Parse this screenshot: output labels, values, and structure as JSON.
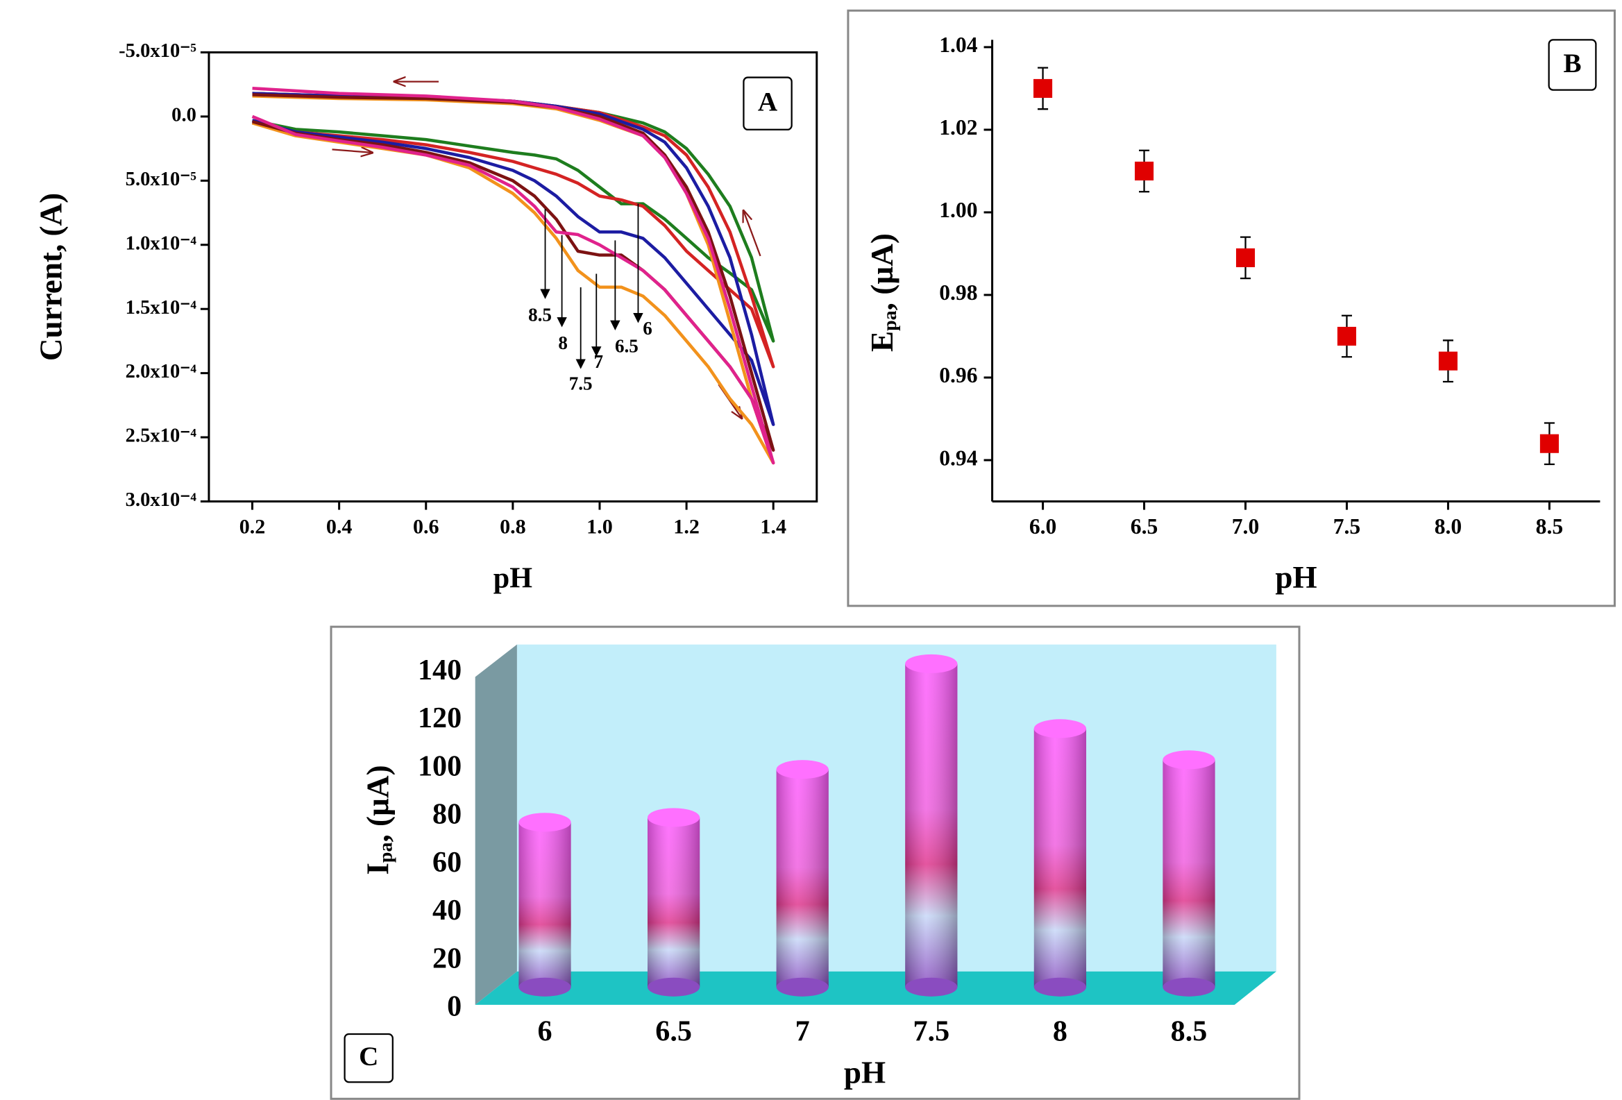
{
  "chart_data": [
    {
      "type": "line",
      "panel": "A",
      "xlabel": "pH",
      "ylabel": "Current, (A)",
      "xlim": [
        0.1,
        1.5
      ],
      "ylim": [
        -5e-05,
        0.0003
      ],
      "y_inverted": true,
      "xticks": [
        0.2,
        0.4,
        0.6,
        0.8,
        {
          "value": 1,
          "label": "1.0"
        },
        1.2,
        1.4
      ],
      "yticks": [
        {
          "value": -5e-05,
          "label": "-5.0x10⁻⁵"
        },
        {
          "value": 0,
          "label": "0.0"
        },
        {
          "value": 5e-05,
          "label": "5.0x10⁻⁵"
        },
        {
          "value": 0.0001,
          "label": "1.0x10⁻⁴"
        },
        {
          "value": 0.00015,
          "label": "1.5x10⁻⁴"
        },
        {
          "value": 0.0002,
          "label": "2.0x10⁻⁴"
        },
        {
          "value": 0.00025,
          "label": "2.5x10⁻⁴"
        },
        {
          "value": 0.0003,
          "label": "3.0x10⁻⁴"
        }
      ],
      "x": [
        0.2,
        0.3,
        0.4,
        0.5,
        0.6,
        0.7,
        0.8,
        0.85,
        0.9,
        0.95,
        1.0,
        1.05,
        1.1,
        1.15,
        1.2,
        1.25,
        1.3,
        1.35,
        1.4,
        1.35,
        1.3,
        1.25,
        1.2,
        1.15,
        1.1,
        1.0,
        0.9,
        0.8,
        0.6,
        0.4,
        0.2
      ],
      "series": [
        {
          "name": "6",
          "color": "#1e7d1e",
          "values": [
            3e-06,
            1e-05,
            1.2e-05,
            1.5e-05,
            1.8e-05,
            2.3e-05,
            2.8e-05,
            3e-05,
            3.3e-05,
            4.2e-05,
            5.5e-05,
            6.8e-05,
            6.8e-05,
            8e-05,
            9.5e-05,
            0.00011,
            0.000122,
            0.000135,
            0.000175,
            0.00011,
            7e-05,
            4.5e-05,
            2.5e-05,
            1.2e-05,
            5e-06,
            -3e-06,
            -8e-06,
            -1.2e-05,
            -1.5e-05,
            -1.6e-05,
            -1.8e-05
          ]
        },
        {
          "name": "6.5",
          "color": "#d42323",
          "values": [
            5e-06,
            1.2e-05,
            1.5e-05,
            1.8e-05,
            2.2e-05,
            2.8e-05,
            3.5e-05,
            4e-05,
            4.5e-05,
            5.2e-05,
            6.2e-05,
            6.5e-05,
            7e-05,
            8.5e-05,
            0.000105,
            0.00012,
            0.000135,
            0.00015,
            0.000195,
            0.00014,
            9e-05,
            5.5e-05,
            3e-05,
            1.5e-05,
            8e-06,
            -3e-06,
            -8e-06,
            -1.2e-05,
            -1.5e-05,
            -1.6e-05,
            -1.8e-05
          ]
        },
        {
          "name": "7",
          "color": "#1c1ca2",
          "values": [
            3e-06,
            1.2e-05,
            1.6e-05,
            2e-05,
            2.5e-05,
            3.2e-05,
            4.2e-05,
            5e-05,
            6.2e-05,
            7.8e-05,
            9e-05,
            9e-05,
            9.5e-05,
            0.00011,
            0.00013,
            0.00015,
            0.00017,
            0.00019,
            0.00024,
            0.00017,
            0.00011,
            7e-05,
            4e-05,
            2e-05,
            1e-05,
            -2e-06,
            -8e-06,
            -1.2e-05,
            -1.5e-05,
            -1.6e-05,
            -1.8e-05
          ]
        },
        {
          "name": "7.5",
          "color": "#f2921c",
          "values": [
            5e-06,
            1.5e-05,
            2e-05,
            2.5e-05,
            3e-05,
            4e-05,
            6e-05,
            7.5e-05,
            9.5e-05,
            0.00012,
            0.000133,
            0.000133,
            0.00014,
            0.000155,
            0.000175,
            0.000195,
            0.00022,
            0.00024,
            0.00027,
            0.00022,
            0.00016,
            0.0001,
            6e-05,
            3e-05,
            1.5e-05,
            3e-06,
            -6e-06,
            -1e-05,
            -1.3e-05,
            -1.4e-05,
            -1.6e-05
          ]
        },
        {
          "name": "8",
          "color": "#7c1212",
          "values": [
            4e-06,
            1.3e-05,
            1.8e-05,
            2.2e-05,
            2.8e-05,
            3.6e-05,
            5e-05,
            6.2e-05,
            8e-05,
            0.000105,
            0.000108,
            0.000108,
            0.00012,
            0.000135,
            0.000155,
            0.000175,
            0.000195,
            0.00022,
            0.00026,
            0.0002,
            0.00014,
            9e-05,
            5.5e-05,
            3e-05,
            1.3e-05,
            0,
            -7e-06,
            -1.1e-05,
            -1.4e-05,
            -1.5e-05,
            -1.7e-05
          ]
        },
        {
          "name": "8.5",
          "color": "#e0228c",
          "values": [
            0,
            1.4e-05,
            1.9e-05,
            2.4e-05,
            3e-05,
            3.8e-05,
            5.5e-05,
            7e-05,
            9e-05,
            9.2e-05,
            0.0001,
            0.00011,
            0.00012,
            0.000135,
            0.000155,
            0.000175,
            0.000195,
            0.00022,
            0.00027,
            0.00021,
            0.00015,
            9.5e-05,
            6e-05,
            3.2e-05,
            1.5e-05,
            2e-06,
            -7e-06,
            -1.2e-05,
            -1.6e-05,
            -1.8e-05,
            -2.2e-05
          ]
        }
      ]
    },
    {
      "type": "scatter",
      "panel": "B",
      "xlabel": "pH",
      "ylabel": [
        "E",
        "pa",
        ", (µA)"
      ],
      "xlim": [
        5.75,
        8.75
      ],
      "ylim": [
        0.93,
        1.04
      ],
      "xticks": [
        {
          "value": 6,
          "label": "6.0"
        },
        6.5,
        {
          "value": 7,
          "label": "7.0"
        },
        7.5,
        {
          "value": 8,
          "label": "8.0"
        },
        8.5
      ],
      "yticks": [
        0.94,
        0.96,
        0.98,
        {
          "value": 1,
          "label": "1.00"
        },
        1.02,
        1.04
      ],
      "x": [
        6,
        6.5,
        7,
        7.5,
        8,
        8.5
      ],
      "values": [
        1.03,
        1.01,
        0.989,
        0.97,
        0.964,
        0.944
      ],
      "errors": [
        0.005,
        0.005,
        0.005,
        0.005,
        0.005,
        0.005
      ],
      "color": "#e00000"
    },
    {
      "type": "bar3d",
      "panel": "C",
      "xlabel": "pH",
      "ylabel": [
        "I",
        "pa",
        ", (µA)"
      ],
      "ylim": [
        0,
        150
      ],
      "yticks": [
        0,
        20,
        40,
        60,
        80,
        100,
        120,
        140
      ],
      "categories": [
        "6",
        "6.5",
        "7",
        "7.5",
        "8",
        "8.5"
      ],
      "values": [
        76,
        78,
        98,
        142,
        115,
        102
      ]
    }
  ]
}
